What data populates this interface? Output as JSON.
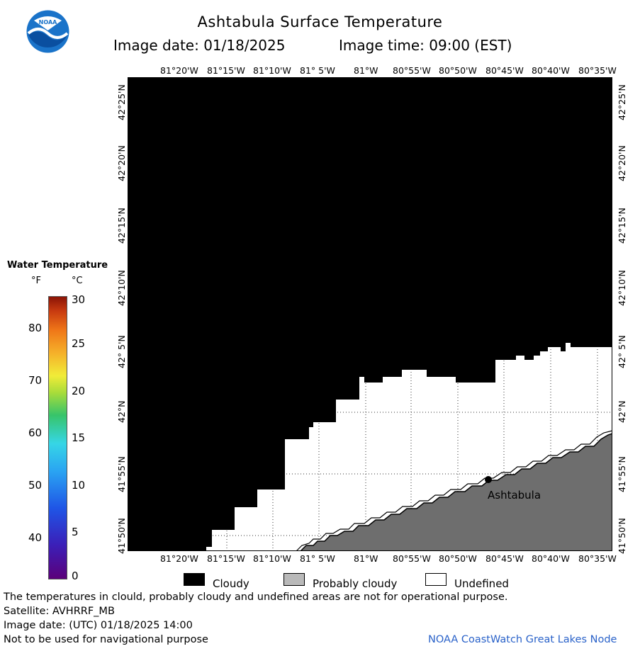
{
  "header": {
    "title": "Ashtabula Surface Temperature",
    "image_date": "Image date: 01/18/2025",
    "image_time": "Image time: 09:00 (EST)"
  },
  "map": {
    "lon_labels": [
      "81°20'W",
      "81°15'W",
      "81°10'W",
      "81° 5'W",
      "81°W",
      "80°55'W",
      "80°50'W",
      "80°45'W",
      "80°40'W",
      "80°35'W"
    ],
    "lat_labels": [
      "42°25'N",
      "42°20'N",
      "42°15'N",
      "42°10'N",
      "42° 5'N",
      "42°N",
      "41°55'N",
      "41°50'N"
    ],
    "city_label": "Ashtabula",
    "colors": {
      "cloud": "#000000",
      "probably_cloudy": "#6e6e6e",
      "undefined": "#ffffff"
    }
  },
  "color_scale": {
    "title": "Water Temperature",
    "unit_f": "°F",
    "unit_c": "°C",
    "f_ticks": [
      "80",
      "70",
      "60",
      "50",
      "40"
    ],
    "c_ticks": [
      "30",
      "25",
      "20",
      "15",
      "10",
      "5",
      "0"
    ]
  },
  "legend": {
    "cloudy": "Cloudy",
    "probably_cloudy": "Probably cloudy",
    "undefined": "Undefined"
  },
  "footer": {
    "disclaimer": "The temperatures in clould, probably cloudy and undefined areas are not for operational purpose.",
    "satellite": "Satellite: AVHRRF_MB",
    "utc_date": "Image date: (UTC) 01/18/2025  14:00",
    "nav_warning": "Not to be used for navigational purpose",
    "credit": "NOAA CoastWatch Great Lakes Node"
  }
}
